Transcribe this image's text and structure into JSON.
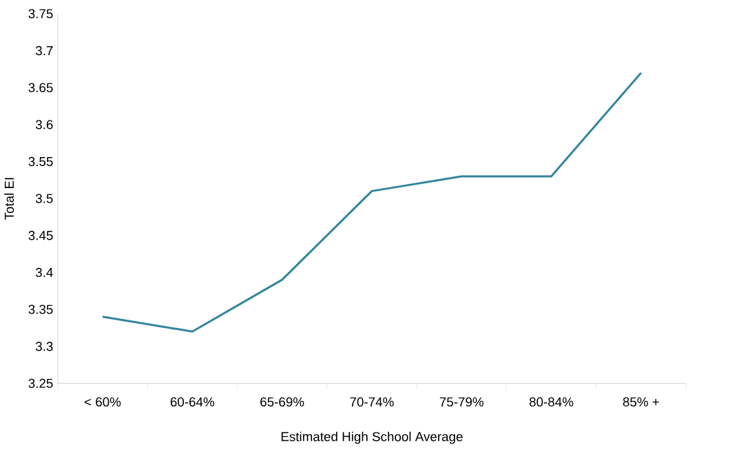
{
  "chart_data": {
    "type": "line",
    "xlabel": "Estimated High School Average",
    "ylabel": "Total EI",
    "categories": [
      "< 60%",
      "60-64%",
      "65-69%",
      "70-74%",
      "75-79%",
      "80-84%",
      "85% +"
    ],
    "values": [
      3.34,
      3.32,
      3.39,
      3.51,
      3.53,
      3.53,
      3.67
    ],
    "color": "#31859c",
    "ylim": [
      3.25,
      3.75
    ],
    "yticks": [
      {
        "value": 3.25,
        "label": "3.25"
      },
      {
        "value": 3.3,
        "label": "3.3"
      },
      {
        "value": 3.35,
        "label": "3.35"
      },
      {
        "value": 3.4,
        "label": "3.4"
      },
      {
        "value": 3.45,
        "label": "3.45"
      },
      {
        "value": 3.5,
        "label": "3.5"
      },
      {
        "value": 3.55,
        "label": "3.55"
      },
      {
        "value": 3.6,
        "label": "3.6"
      },
      {
        "value": 3.65,
        "label": "3.65"
      },
      {
        "value": 3.7,
        "label": "3.7"
      },
      {
        "value": 3.75,
        "label": "3.75"
      }
    ],
    "grid": false,
    "marker": "none",
    "line_style": "solid"
  }
}
